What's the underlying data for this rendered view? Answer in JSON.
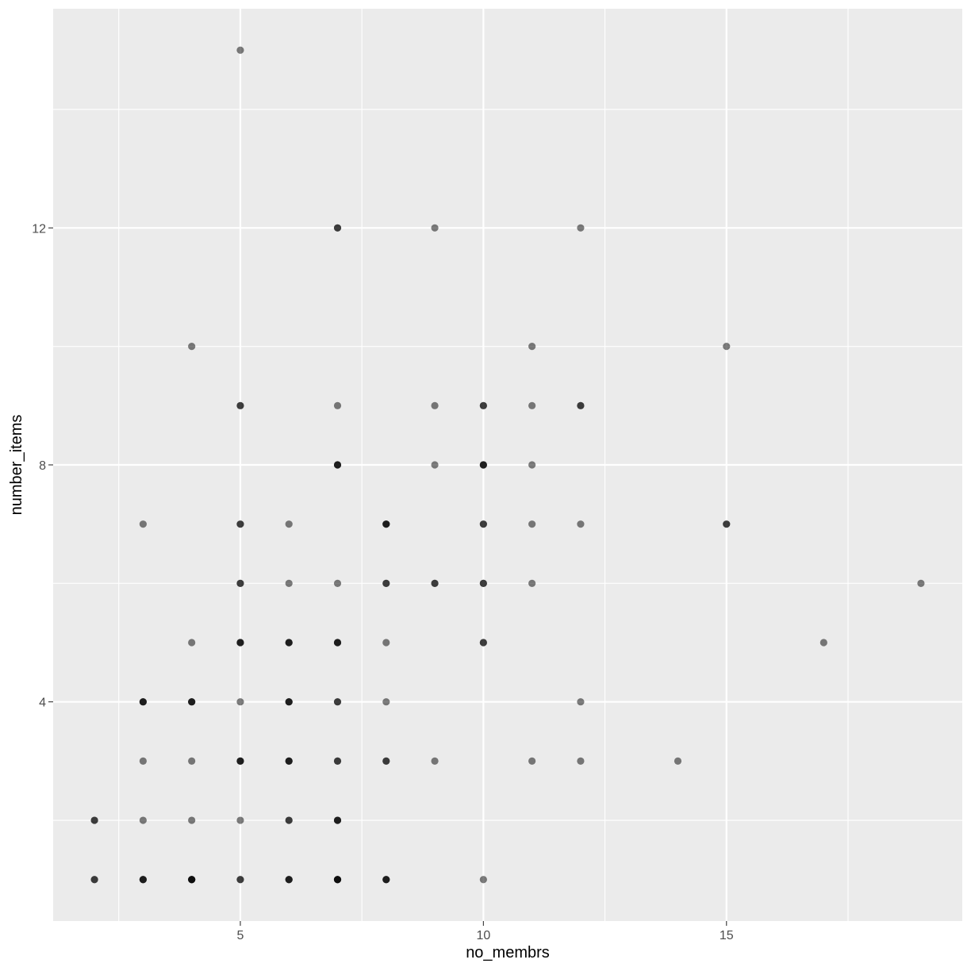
{
  "chart_data": {
    "type": "scatter",
    "title": "",
    "xlabel": "no_membrs",
    "ylabel": "number_items",
    "xlim": [
      1.15,
      19.85
    ],
    "ylim": [
      0.3,
      15.7
    ],
    "x_ticks": [
      5,
      10,
      15
    ],
    "x_tick_labels": [
      "5",
      "10",
      "15"
    ],
    "x_minor_ticks": [
      2.5,
      7.5,
      12.5,
      17.5
    ],
    "y_ticks": [
      4,
      8,
      12
    ],
    "y_tick_labels": [
      "4",
      "8",
      "12"
    ],
    "y_minor_ticks": [
      2,
      6,
      10,
      14
    ],
    "grid": true,
    "point_color": "#000000",
    "point_alpha": 0.5,
    "panel_background": "#ebebeb",
    "grid_color": "#ffffff",
    "points": [
      [
        5,
        15
      ],
      [
        7,
        12
      ],
      [
        7,
        12
      ],
      [
        9,
        12
      ],
      [
        12,
        12
      ],
      [
        4,
        10
      ],
      [
        11,
        10
      ],
      [
        15,
        10
      ],
      [
        5,
        9
      ],
      [
        5,
        9
      ],
      [
        7,
        9
      ],
      [
        9,
        9
      ],
      [
        10,
        9
      ],
      [
        10,
        9
      ],
      [
        11,
        9
      ],
      [
        12,
        9
      ],
      [
        12,
        9
      ],
      [
        7,
        8
      ],
      [
        7,
        8
      ],
      [
        7,
        8
      ],
      [
        9,
        8
      ],
      [
        10,
        8
      ],
      [
        10,
        8
      ],
      [
        10,
        8
      ],
      [
        11,
        8
      ],
      [
        3,
        7
      ],
      [
        5,
        7
      ],
      [
        5,
        7
      ],
      [
        6,
        7
      ],
      [
        8,
        7
      ],
      [
        8,
        7
      ],
      [
        8,
        7
      ],
      [
        10,
        7
      ],
      [
        10,
        7
      ],
      [
        11,
        7
      ],
      [
        12,
        7
      ],
      [
        15,
        7
      ],
      [
        15,
        7
      ],
      [
        5,
        6
      ],
      [
        5,
        6
      ],
      [
        6,
        6
      ],
      [
        7,
        6
      ],
      [
        8,
        6
      ],
      [
        8,
        6
      ],
      [
        9,
        6
      ],
      [
        9,
        6
      ],
      [
        10,
        6
      ],
      [
        10,
        6
      ],
      [
        11,
        6
      ],
      [
        19,
        6
      ],
      [
        4,
        5
      ],
      [
        5,
        5
      ],
      [
        5,
        5
      ],
      [
        5,
        5
      ],
      [
        6,
        5
      ],
      [
        6,
        5
      ],
      [
        6,
        5
      ],
      [
        7,
        5
      ],
      [
        7,
        5
      ],
      [
        7,
        5
      ],
      [
        8,
        5
      ],
      [
        10,
        5
      ],
      [
        10,
        5
      ],
      [
        17,
        5
      ],
      [
        3,
        4
      ],
      [
        3,
        4
      ],
      [
        3,
        4
      ],
      [
        4,
        4
      ],
      [
        4,
        4
      ],
      [
        4,
        4
      ],
      [
        5,
        4
      ],
      [
        6,
        4
      ],
      [
        6,
        4
      ],
      [
        6,
        4
      ],
      [
        7,
        4
      ],
      [
        7,
        4
      ],
      [
        8,
        4
      ],
      [
        12,
        4
      ],
      [
        3,
        3
      ],
      [
        4,
        3
      ],
      [
        5,
        3
      ],
      [
        5,
        3
      ],
      [
        5,
        3
      ],
      [
        6,
        3
      ],
      [
        6,
        3
      ],
      [
        6,
        3
      ],
      [
        7,
        3
      ],
      [
        7,
        3
      ],
      [
        8,
        3
      ],
      [
        8,
        3
      ],
      [
        9,
        3
      ],
      [
        11,
        3
      ],
      [
        12,
        3
      ],
      [
        14,
        3
      ],
      [
        2,
        2
      ],
      [
        2,
        2
      ],
      [
        3,
        2
      ],
      [
        4,
        2
      ],
      [
        5,
        2
      ],
      [
        6,
        2
      ],
      [
        6,
        2
      ],
      [
        7,
        2
      ],
      [
        7,
        2
      ],
      [
        7,
        2
      ],
      [
        2,
        1
      ],
      [
        2,
        1
      ],
      [
        3,
        1
      ],
      [
        3,
        1
      ],
      [
        3,
        1
      ],
      [
        4,
        1
      ],
      [
        4,
        1
      ],
      [
        4,
        1
      ],
      [
        4,
        1
      ],
      [
        5,
        1
      ],
      [
        5,
        1
      ],
      [
        6,
        1
      ],
      [
        6,
        1
      ],
      [
        6,
        1
      ],
      [
        7,
        1
      ],
      [
        7,
        1
      ],
      [
        7,
        1
      ],
      [
        7,
        1
      ],
      [
        8,
        1
      ],
      [
        8,
        1
      ],
      [
        8,
        1
      ],
      [
        10,
        1
      ]
    ]
  }
}
